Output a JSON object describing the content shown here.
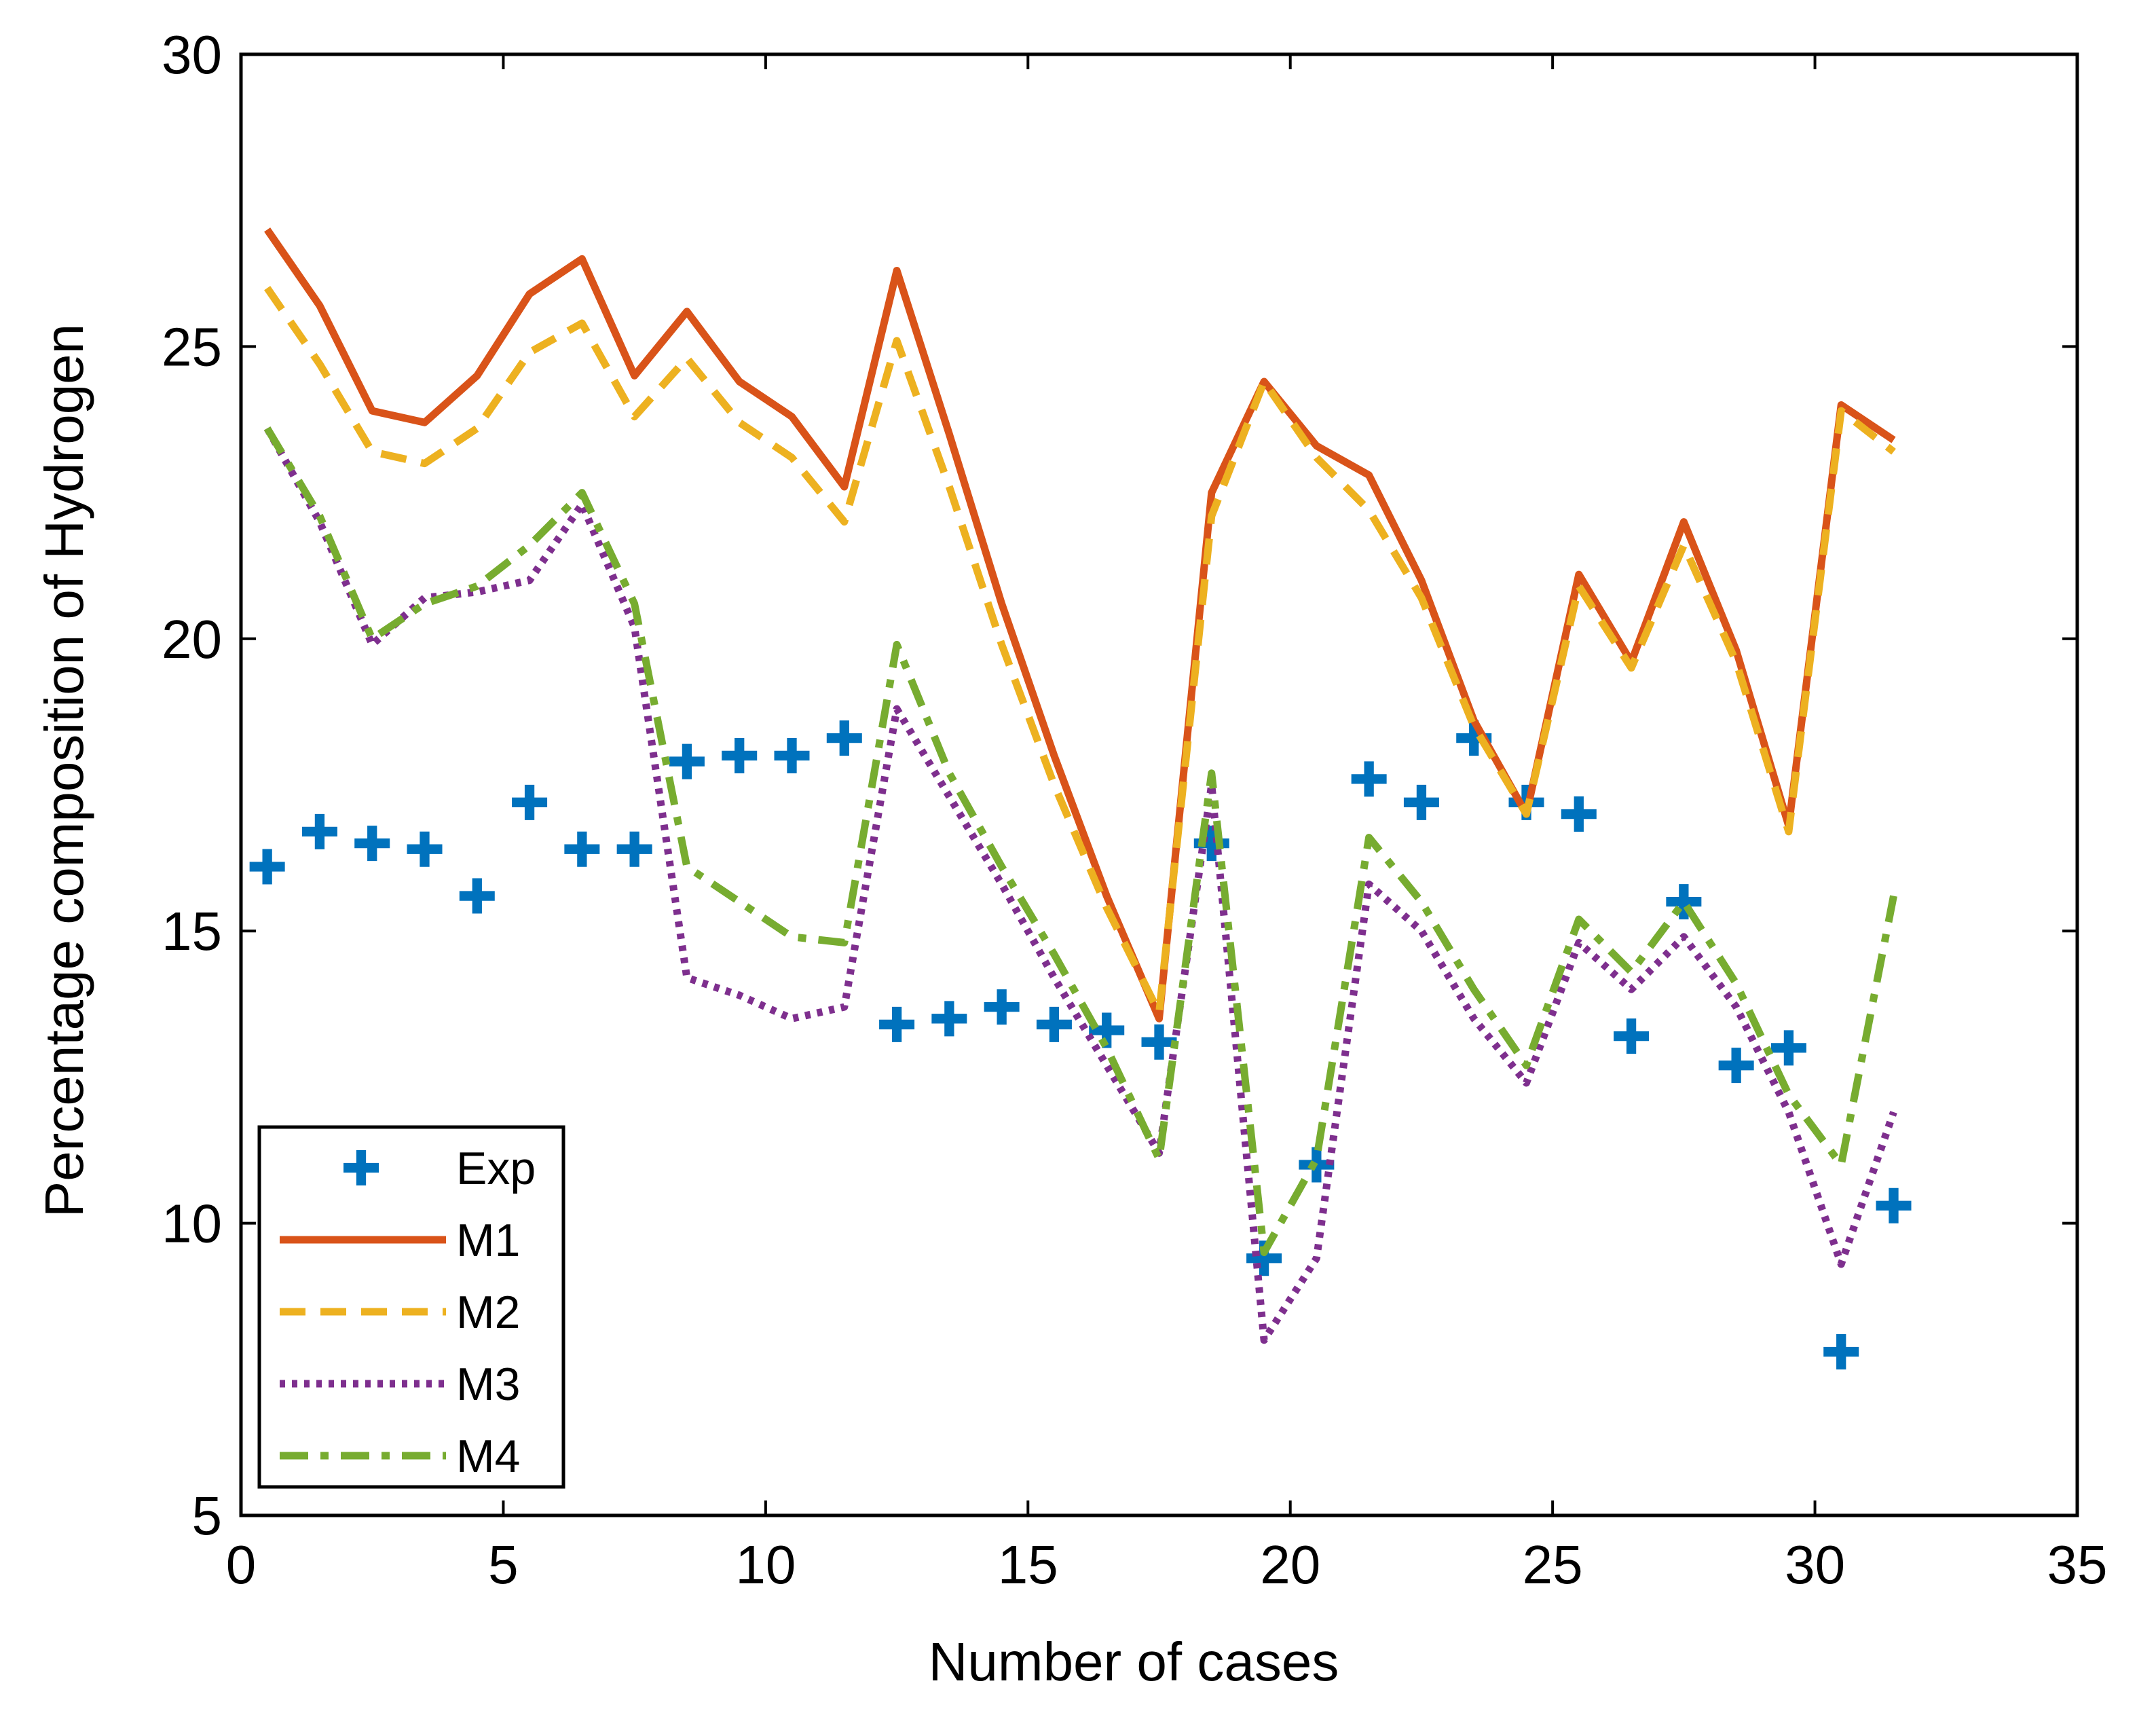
{
  "chart_data": {
    "type": "line",
    "title": "",
    "xlabel": "Number of cases",
    "ylabel": "Percentage composition of Hydrogen",
    "xlim": [
      0,
      35
    ],
    "ylim": [
      5,
      30
    ],
    "xticks": [
      0,
      5,
      10,
      15,
      20,
      25,
      30,
      35
    ],
    "yticks": [
      5,
      10,
      15,
      20,
      25,
      30
    ],
    "x": [
      0.5,
      1.5,
      2.5,
      3.5,
      4.5,
      5.5,
      6.5,
      7.5,
      8.5,
      9.5,
      10.5,
      11.5,
      12.5,
      13.5,
      14.5,
      15.5,
      16.5,
      17.5,
      18.5,
      19.5,
      20.5,
      21.5,
      22.5,
      23.5,
      24.5,
      25.5,
      26.5,
      27.5,
      28.5,
      29.5,
      30.5,
      31.5
    ],
    "legend_position": "bottom-left",
    "series": [
      {
        "name": "Exp",
        "style": "marker-plus",
        "color": "#0072BD",
        "values": [
          16.1,
          16.7,
          16.5,
          16.4,
          15.6,
          17.2,
          16.4,
          16.4,
          17.9,
          18.0,
          18.0,
          18.3,
          13.4,
          13.5,
          13.7,
          13.4,
          13.3,
          13.1,
          16.5,
          9.4,
          11.0,
          17.6,
          17.2,
          18.3,
          17.2,
          17.0,
          13.2,
          15.5,
          12.7,
          13.0,
          7.8,
          10.3
        ]
      },
      {
        "name": "M1",
        "style": "solid",
        "color": "#D95319",
        "values": [
          27.0,
          25.7,
          23.9,
          23.7,
          24.5,
          25.9,
          26.5,
          24.5,
          25.6,
          24.4,
          23.8,
          22.6,
          26.3,
          23.5,
          20.6,
          18.0,
          15.6,
          13.5,
          22.5,
          24.4,
          23.3,
          22.8,
          21.0,
          18.6,
          17.0,
          21.1,
          19.6,
          22.0,
          19.8,
          16.8,
          24.0,
          23.4
        ]
      },
      {
        "name": "M2",
        "style": "dashed",
        "color": "#EDB120",
        "values": [
          26.0,
          24.7,
          23.2,
          23.0,
          23.6,
          24.9,
          25.4,
          23.8,
          24.8,
          23.7,
          23.1,
          22.0,
          25.1,
          22.6,
          19.9,
          17.5,
          15.4,
          13.6,
          22.1,
          24.4,
          23.1,
          22.2,
          20.7,
          18.5,
          17.0,
          20.9,
          19.5,
          21.6,
          19.6,
          16.7,
          23.9,
          23.2
        ]
      },
      {
        "name": "M3",
        "style": "dotted",
        "color": "#7E2F8E",
        "values": [
          23.6,
          22.0,
          19.9,
          20.7,
          20.8,
          21.0,
          22.3,
          20.2,
          14.2,
          13.9,
          13.5,
          13.7,
          18.8,
          17.3,
          15.8,
          14.2,
          12.7,
          11.2,
          17.5,
          8.0,
          9.4,
          15.8,
          15.0,
          13.5,
          12.4,
          14.8,
          14.0,
          14.9,
          13.7,
          11.9,
          9.3,
          11.9
        ]
      },
      {
        "name": "M4",
        "style": "dashdot",
        "color": "#77AC30",
        "values": [
          23.6,
          22.1,
          20.0,
          20.6,
          20.9,
          21.6,
          22.5,
          20.6,
          16.1,
          15.5,
          14.9,
          14.8,
          19.9,
          17.7,
          16.1,
          14.6,
          13.0,
          11.1,
          17.7,
          9.5,
          11.1,
          16.6,
          15.5,
          14.0,
          12.7,
          15.2,
          14.3,
          15.5,
          14.1,
          12.2,
          11.0,
          15.6
        ]
      }
    ]
  }
}
